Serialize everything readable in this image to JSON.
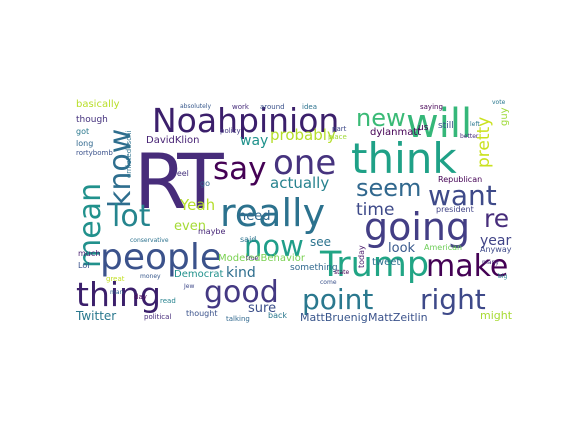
{
  "words": [
    {
      "text": "RT",
      "color": "#472c7a"
    },
    {
      "text": "Noahpinion",
      "color": "#3b1f6b"
    },
    {
      "text": "will",
      "color": "#35b779"
    },
    {
      "text": "think",
      "color": "#1fa187"
    },
    {
      "text": "one",
      "color": "#46337e"
    },
    {
      "text": "say",
      "color": "#440154"
    },
    {
      "text": "know",
      "color": "#2e6e8e"
    },
    {
      "text": "mean",
      "color": "#21918c"
    },
    {
      "text": "really",
      "color": "#2c728e"
    },
    {
      "text": "going",
      "color": "#433e85"
    },
    {
      "text": "new",
      "color": "#3aba76"
    },
    {
      "text": "seem",
      "color": "#31688e"
    },
    {
      "text": "want",
      "color": "#3e4a89"
    },
    {
      "text": "lot",
      "color": "#25858e"
    },
    {
      "text": "people",
      "color": "#3b528b"
    },
    {
      "text": "now",
      "color": "#1f9e89"
    },
    {
      "text": "make",
      "color": "#440154"
    },
    {
      "text": "Trump",
      "color": "#21a585"
    },
    {
      "text": "thing",
      "color": "#3b1f6b"
    },
    {
      "text": "good",
      "color": "#443983"
    },
    {
      "text": "point",
      "color": "#2a788e"
    },
    {
      "text": "right",
      "color": "#3e4989"
    },
    {
      "text": "re",
      "color": "#472d7b"
    },
    {
      "text": "time",
      "color": "#3e4a89"
    },
    {
      "text": "Yeah",
      "color": "#b5de2b"
    },
    {
      "text": "probably",
      "color": "#b5de2b"
    },
    {
      "text": "actually",
      "color": "#26828e"
    },
    {
      "text": "pretty",
      "color": "#cae11f"
    },
    {
      "text": "year",
      "color": "#414487"
    },
    {
      "text": "even",
      "color": "#a5db36"
    },
    {
      "text": "way",
      "color": "#20928c"
    },
    {
      "text": "kind",
      "color": "#2e6e8e"
    },
    {
      "text": "need",
      "color": "#31688e"
    },
    {
      "text": "look",
      "color": "#38588c"
    },
    {
      "text": "sure",
      "color": "#3c4f8a"
    },
    {
      "text": "see",
      "color": "#2c738e"
    },
    {
      "text": "Twitter",
      "color": "#2a788e"
    },
    {
      "text": "MattBruenig",
      "color": "#39568c"
    },
    {
      "text": "MattZeitlin",
      "color": "#3b528b"
    },
    {
      "text": "might",
      "color": "#a8db34"
    },
    {
      "text": "DavidKlion",
      "color": "#482475"
    },
    {
      "text": "dylanmatt",
      "color": "#440154"
    },
    {
      "text": "ModeledBehavior",
      "color": "#7ad151"
    },
    {
      "text": "Democrat",
      "color": "#21918c"
    },
    {
      "text": "something",
      "color": "#31688e"
    },
    {
      "text": "basically",
      "color": "#b8de29"
    },
    {
      "text": "though",
      "color": "#46337e"
    },
    {
      "text": "guy",
      "color": "#9fda3a"
    },
    {
      "text": "tweet",
      "color": "#2d708e"
    },
    {
      "text": "today",
      "color": "#48186a"
    },
    {
      "text": "still",
      "color": "#3b528b"
    },
    {
      "text": "us",
      "color": "#440154"
    },
    {
      "text": "got",
      "color": "#2a788e"
    },
    {
      "text": "long",
      "color": "#31688e"
    },
    {
      "text": "Republican",
      "color": "#440154"
    },
    {
      "text": "president",
      "color": "#414487"
    },
    {
      "text": "American",
      "color": "#6ece58"
    },
    {
      "text": "Anyway",
      "color": "#3e4989"
    },
    {
      "text": "much",
      "color": "#481f70"
    },
    {
      "text": "maybe",
      "color": "#482878"
    },
    {
      "text": "said",
      "color": "#2c728e"
    },
    {
      "text": "back",
      "color": "#2a788e"
    },
    {
      "text": "thought",
      "color": "#3b528b"
    },
    {
      "text": "talking",
      "color": "#31688e"
    },
    {
      "text": "political",
      "color": "#472d7b"
    },
    {
      "text": "Lol",
      "color": "#3b528b"
    },
    {
      "text": "feel",
      "color": "#46337e"
    },
    {
      "text": "go",
      "color": "#31688e"
    },
    {
      "text": "day",
      "color": "#440154"
    },
    {
      "text": "read",
      "color": "#26828e"
    },
    {
      "text": "policy",
      "color": "#443983"
    },
    {
      "text": "part",
      "color": "#3e4989"
    },
    {
      "text": "idea",
      "color": "#2c728e"
    },
    {
      "text": "saying",
      "color": "#440154"
    },
    {
      "text": "work",
      "color": "#472d7b"
    },
    {
      "text": "around",
      "color": "#3b528b"
    },
    {
      "text": "absolutely",
      "color": "#38598c"
    },
    {
      "text": "place",
      "color": "#a0da39"
    },
    {
      "text": "great",
      "color": "#c2df23"
    },
    {
      "text": "man",
      "color": "#31688e"
    },
    {
      "text": "many",
      "color": "#472d7b"
    },
    {
      "text": "Jew",
      "color": "#3e4989"
    },
    {
      "text": "left",
      "color": "#2a788e"
    },
    {
      "text": "ernietedeschi",
      "color": "#2c728e"
    },
    {
      "text": "rortybomb",
      "color": "#3b528b"
    },
    {
      "text": "better",
      "color": "#472d7b"
    },
    {
      "text": "conservative",
      "color": "#2c728e"
    },
    {
      "text": "come",
      "color": "#3b528b"
    },
    {
      "text": "vote",
      "color": "#2a788e"
    },
    {
      "text": "state",
      "color": "#440154"
    },
    {
      "text": "true",
      "color": "#482878"
    },
    {
      "text": "big",
      "color": "#26828e"
    },
    {
      "text": "money",
      "color": "#38598c"
    }
  ]
}
